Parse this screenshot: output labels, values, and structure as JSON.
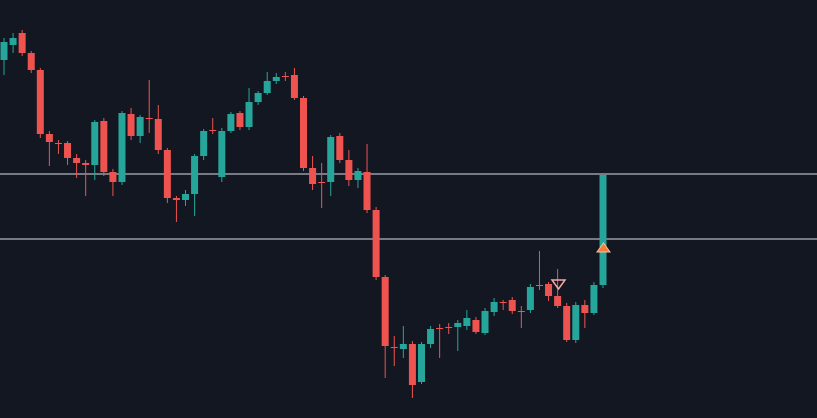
{
  "chart_data": {
    "type": "candlestick",
    "up_color": "#26a69a",
    "down_color": "#ef5350",
    "level_color": "#b2b5be",
    "ylim": [
      0,
      418
    ],
    "levels": [
      244,
      179
    ],
    "open": [
      358,
      373,
      385,
      365,
      348,
      284,
      275,
      275,
      260,
      255,
      253,
      297,
      246,
      236,
      304,
      282,
      300,
      299,
      268,
      220,
      218,
      224,
      262,
      288,
      241,
      287,
      305,
      291,
      316,
      325,
      337,
      342,
      343,
      320,
      250,
      236,
      236,
      282,
      258,
      238,
      246,
      208,
      141,
      71,
      69,
      74,
      36,
      74,
      90,
      91,
      91,
      92,
      98,
      85,
      106,
      116,
      118,
      107,
      108,
      133,
      134,
      122,
      112,
      78,
      113,
      105,
      133
    ],
    "high": [
      380,
      385,
      388,
      367,
      350,
      287,
      278,
      277,
      264,
      258,
      298,
      300,
      249,
      307,
      310,
      303,
      338,
      313,
      270,
      222,
      228,
      264,
      289,
      300,
      290,
      306,
      307,
      330,
      327,
      346,
      345,
      346,
      350,
      322,
      262,
      255,
      283,
      285,
      268,
      250,
      274,
      211,
      143,
      82,
      92,
      77,
      76,
      92,
      94,
      95,
      98,
      108,
      101,
      110,
      120,
      118,
      121,
      112,
      134,
      167,
      136,
      149,
      115,
      116,
      118,
      136,
      243
    ],
    "low": [
      343,
      365,
      362,
      345,
      280,
      252,
      264,
      253,
      240,
      222,
      238,
      242,
      222,
      233,
      278,
      275,
      285,
      264,
      215,
      196,
      212,
      202,
      258,
      284,
      236,
      285,
      288,
      288,
      313,
      323,
      334,
      337,
      318,
      247,
      228,
      210,
      222,
      255,
      232,
      230,
      205,
      138,
      40,
      52,
      60,
      20,
      34,
      70,
      60,
      84,
      67,
      88,
      84,
      83,
      102,
      108,
      104,
      90,
      105,
      128,
      117,
      110,
      76,
      75,
      90,
      103,
      130
    ],
    "close": [
      376,
      380,
      365,
      348,
      284,
      276,
      274,
      260,
      255,
      253,
      296,
      246,
      236,
      305,
      282,
      301,
      299,
      268,
      220,
      218,
      224,
      262,
      287,
      287,
      287,
      304,
      291,
      316,
      325,
      337,
      341,
      341,
      320,
      250,
      234,
      235,
      281,
      258,
      238,
      247,
      208,
      141,
      72,
      70,
      74,
      33,
      74,
      89,
      89,
      90,
      95,
      100,
      86,
      107,
      116,
      115,
      107,
      106,
      131,
      132,
      122,
      112,
      78,
      113,
      105,
      133,
      243
    ]
  }
}
